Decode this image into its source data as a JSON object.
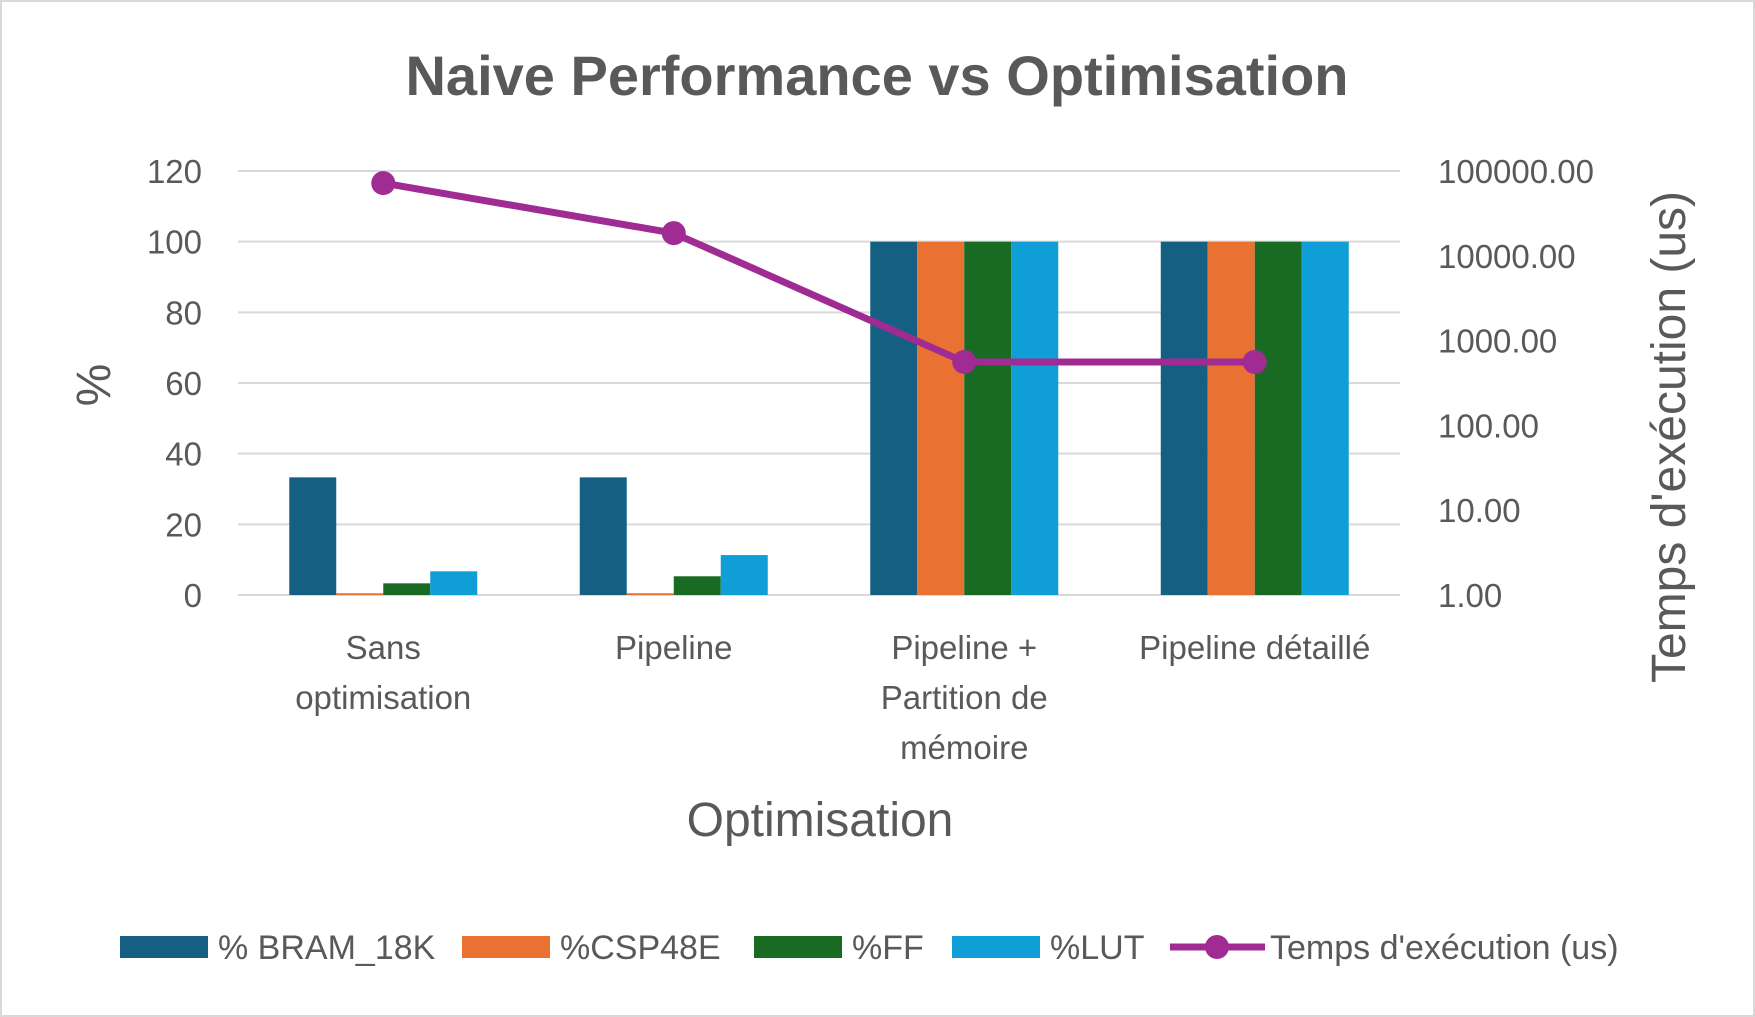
{
  "chart_data": {
    "type": "bar",
    "title": "Naive Performance vs Optimisation",
    "xlabel": "Optimisation",
    "ylabel": "%",
    "y2label": "Temps d'exécution (us)",
    "ylim": [
      0,
      120
    ],
    "yticks": [
      "0",
      "20",
      "40",
      "60",
      "80",
      "100",
      "120"
    ],
    "y2lim_log10": [
      0,
      5
    ],
    "y2ticks": [
      "1.00",
      "10.00",
      "100.00",
      "1000.00",
      "10000.00",
      "100000.00"
    ],
    "y2ticks_values": [
      1,
      10,
      100,
      1000,
      10000,
      100000
    ],
    "grid": true,
    "legend_position": "bottom",
    "categories": [
      [
        "Sans",
        "optimisation"
      ],
      [
        "Pipeline"
      ],
      [
        "Pipeline +",
        "Partition de",
        "mémoire"
      ],
      [
        "Pipeline détaillé"
      ]
    ],
    "series": [
      {
        "name": "% BRAM_18K",
        "type": "bar",
        "axis": "left",
        "color": "#156082",
        "values": [
          33.3,
          33.3,
          100,
          100
        ]
      },
      {
        "name": "%CSP48E",
        "type": "bar",
        "axis": "left",
        "color": "#E97132",
        "values": [
          0.5,
          0.5,
          100,
          100
        ]
      },
      {
        "name": "%FF",
        "type": "bar",
        "axis": "left",
        "color": "#196B24",
        "values": [
          3.3,
          5.3,
          100,
          100
        ]
      },
      {
        "name": "%LUT",
        "type": "bar",
        "axis": "left",
        "color": "#0F9ED5",
        "values": [
          6.7,
          11.3,
          100,
          100
        ]
      },
      {
        "name": "Temps d'exécution (us)",
        "type": "line",
        "axis": "right",
        "color": "#A02B93",
        "values": [
          72000,
          18500,
          560,
          560
        ]
      }
    ]
  }
}
